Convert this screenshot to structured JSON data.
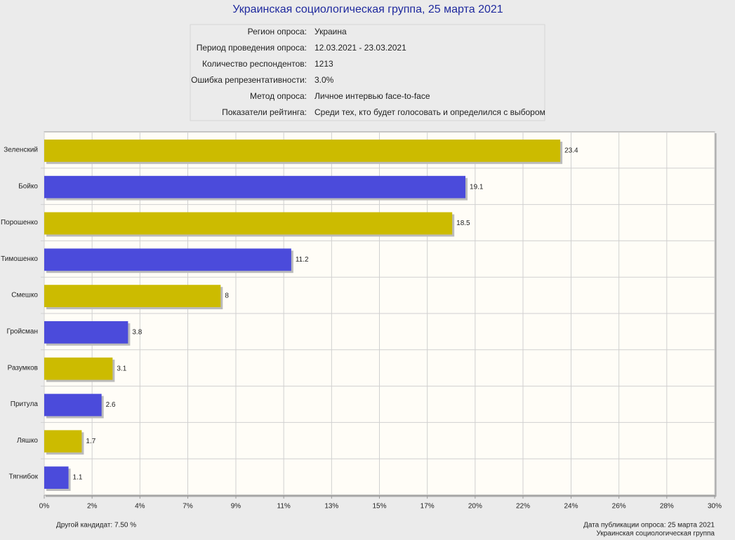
{
  "chart_data": {
    "type": "hbar",
    "title": "Украинская социологическая группа, 25 марта 2021",
    "info": [
      {
        "label": "Регион опроса:",
        "value": "Украина"
      },
      {
        "label": "Период проведения опроса:",
        "value": "12.03.2021 - 23.03.2021"
      },
      {
        "label": "Количество респондентов:",
        "value": "1213"
      },
      {
        "label": "Ошибка репрезентативности:",
        "value": "3.0%"
      },
      {
        "label": "Метод опроса:",
        "value": "Личное интервью face-to-face"
      },
      {
        "label": "Показатели рейтинга:",
        "value": "Среди тех, кто будет голосовать и определился с выбором"
      }
    ],
    "categories": [
      "Зеленский",
      "Бойко",
      "Порошенко",
      "Тимошенко",
      "Смешко",
      "Гройсман",
      "Разумков",
      "Притула",
      "Ляшко",
      "Тягнибок"
    ],
    "values": [
      23.4,
      19.1,
      18.5,
      11.2,
      8,
      3.8,
      3.1,
      2.6,
      1.7,
      1.1
    ],
    "colors": [
      "#ccbb00",
      "#4b4bdb",
      "#ccbb00",
      "#4b4bdb",
      "#ccbb00",
      "#4b4bdb",
      "#ccbb00",
      "#4b4bdb",
      "#ccbb00",
      "#4b4bdb"
    ],
    "xlim": [
      0,
      30.4
    ],
    "xticks": [
      {
        "value": 0,
        "label": "0%"
      },
      {
        "value": 2.17,
        "label": "2%"
      },
      {
        "value": 4.34,
        "label": "4%"
      },
      {
        "value": 6.51,
        "label": "7%"
      },
      {
        "value": 8.69,
        "label": "9%"
      },
      {
        "value": 10.86,
        "label": "11%"
      },
      {
        "value": 13.03,
        "label": "13%"
      },
      {
        "value": 15.2,
        "label": "15%"
      },
      {
        "value": 17.37,
        "label": "17%"
      },
      {
        "value": 19.54,
        "label": "20%"
      },
      {
        "value": 21.71,
        "label": "22%"
      },
      {
        "value": 23.89,
        "label": "24%"
      },
      {
        "value": 26.06,
        "label": "26%"
      },
      {
        "value": 28.23,
        "label": "28%"
      },
      {
        "value": 30.4,
        "label": "30%"
      }
    ],
    "grid": true,
    "note": "Другой кандидат: 7.50 %",
    "publication_date": "Дата публикации опроса: 25 марта 2021",
    "source": "Украинская социологическая группа"
  }
}
